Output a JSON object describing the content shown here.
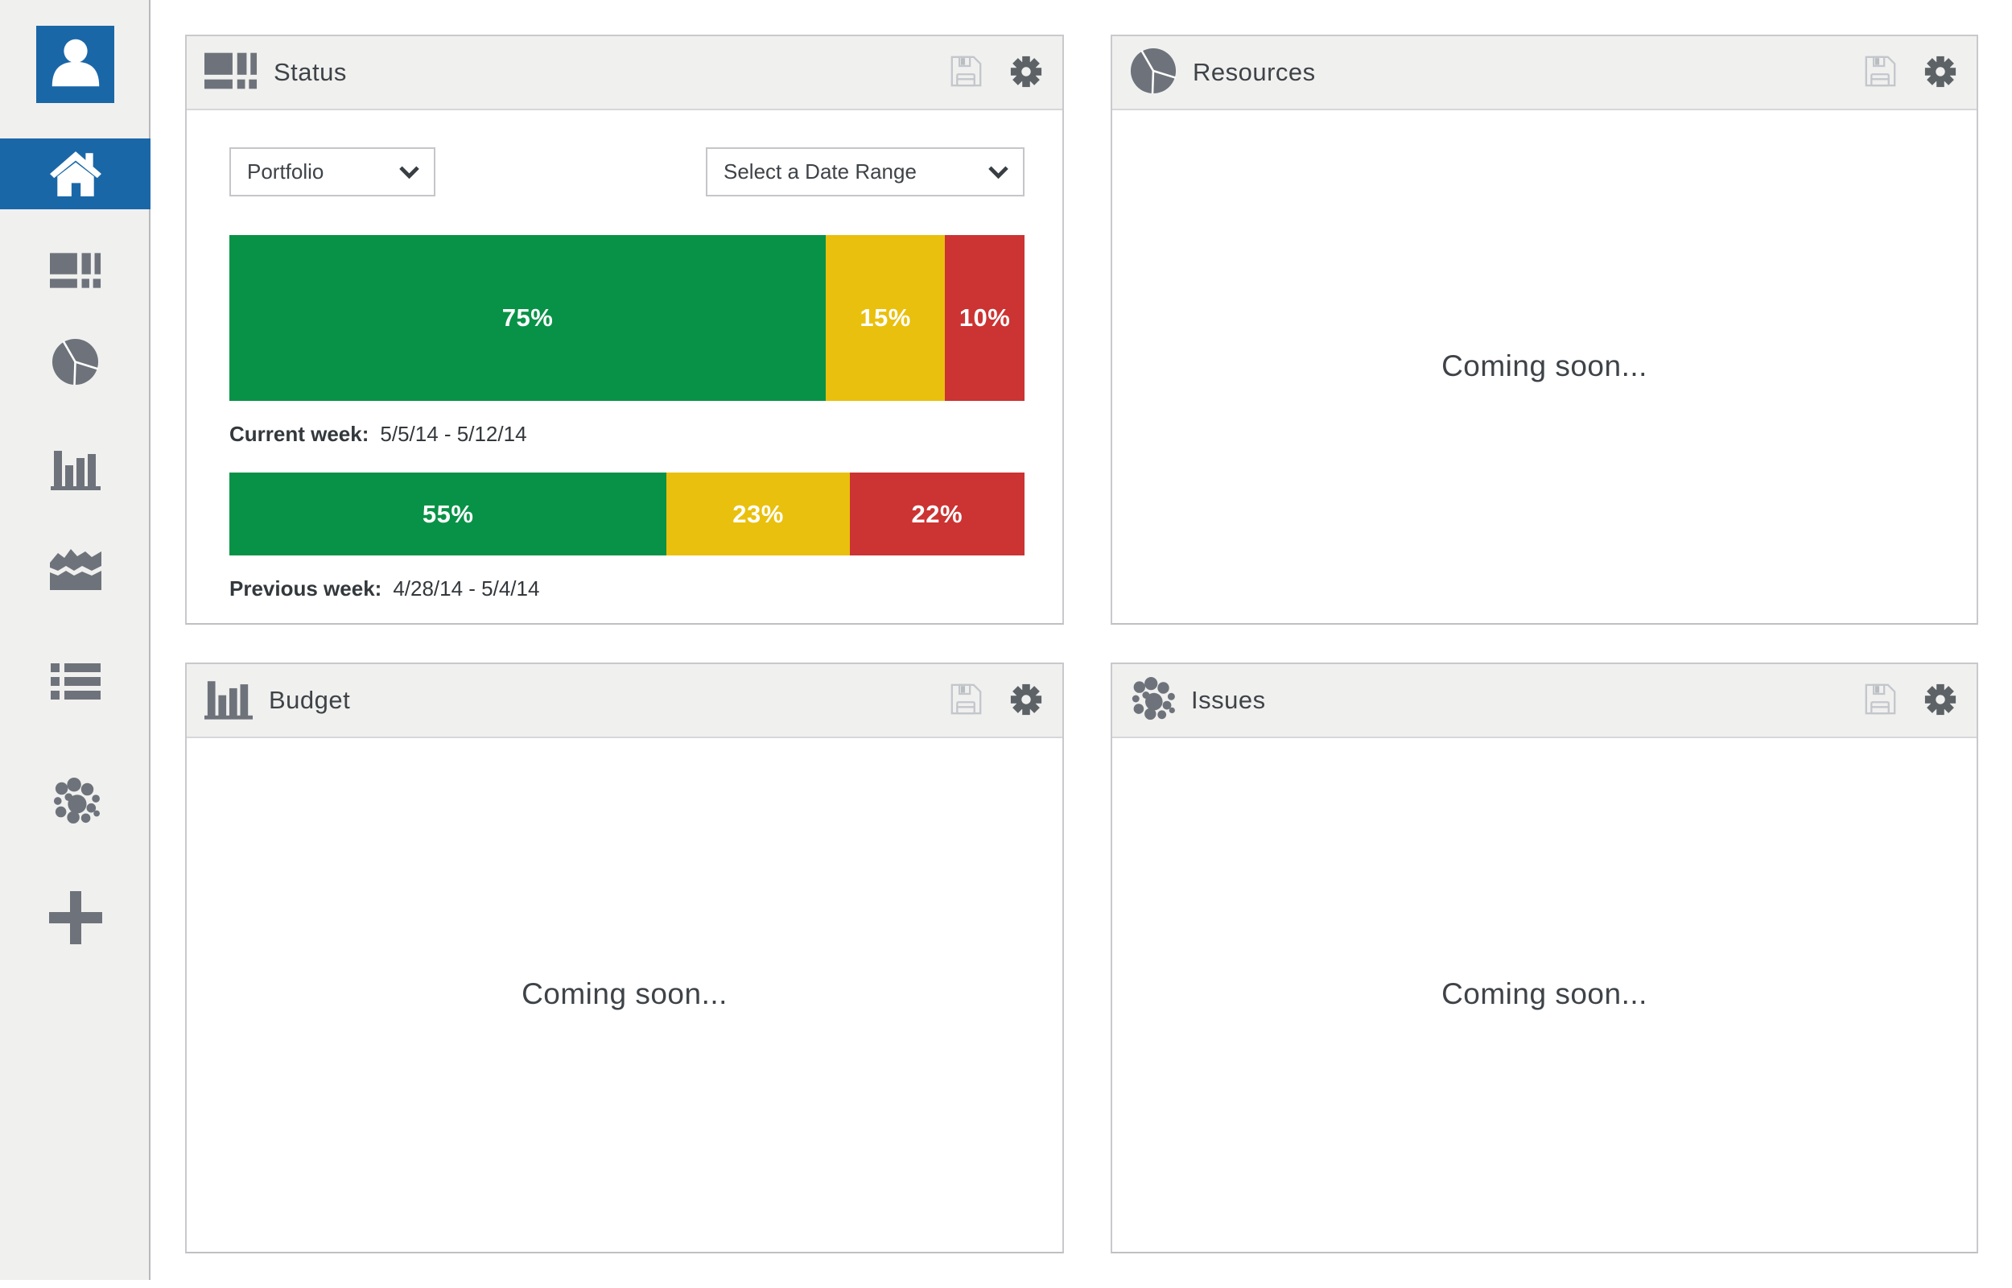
{
  "ui": {
    "accent_blue": "#1a67a8",
    "sidebar_icon_gray": "#6e737b",
    "header_action_icons": [
      "save-icon",
      "gear-icon"
    ],
    "sidebar_icons": [
      "user-avatar-icon",
      "home-icon",
      "dashboard-grid-icon",
      "pie-chart-icon",
      "bar-chart-icon",
      "area-chart-icon",
      "list-icon",
      "bubble-cluster-icon",
      "plus-icon"
    ]
  },
  "panels": {
    "status": {
      "title": "Status",
      "icon": "dashboard-grid-icon",
      "controls": {
        "portfolio_value": "Portfolio",
        "date_range_value": "Select a Date Range"
      }
    },
    "resources": {
      "title": "Resources",
      "icon": "pie-chart-icon",
      "body_text": "Coming soon..."
    },
    "budget": {
      "title": "Budget",
      "icon": "bar-chart-icon",
      "body_text": "Coming soon..."
    },
    "issues": {
      "title": "Issues",
      "icon": "bubble-cluster-icon",
      "body_text": "Coming soon..."
    }
  },
  "chart_data": {
    "type": "bar",
    "stacked": true,
    "orientation": "horizontal",
    "unit": "percent",
    "legend": false,
    "series_colors": {
      "green": "#089247",
      "yellow": "#e9c00d",
      "red": "#cc3333"
    },
    "bars": [
      {
        "label": "Current week:",
        "dates": "5/5/14 - 5/12/14",
        "segments": [
          {
            "series": "green",
            "value": 75,
            "label": "75%"
          },
          {
            "series": "yellow",
            "value": 15,
            "label": "15%"
          },
          {
            "series": "red",
            "value": 10,
            "label": "10%"
          }
        ]
      },
      {
        "label": "Previous week:",
        "dates": "4/28/14 - 5/4/14",
        "segments": [
          {
            "series": "green",
            "value": 55,
            "label": "55%"
          },
          {
            "series": "yellow",
            "value": 23,
            "label": "23%"
          },
          {
            "series": "red",
            "value": 22,
            "label": "22%"
          }
        ]
      }
    ]
  }
}
